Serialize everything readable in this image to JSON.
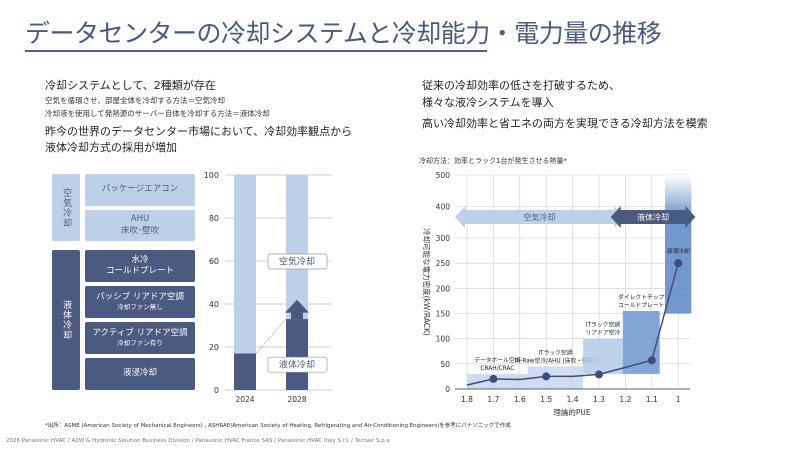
{
  "title": "データセンターの冷却システムと冷却能力・電力量の推移",
  "left_text": {
    "heading1": "冷却システムとして、2種類が存在",
    "line1": "空気を循環させ、部屋全体を冷却する方法＝空気冷却",
    "line2": "冷却液を使用して発熱源のサーバー自体を冷却する方法＝液体冷却",
    "heading2a": "昨今の世界のデータセンター市場において、冷却効率観点から",
    "heading2b": "液体冷却方式の採用が増加"
  },
  "right_text": {
    "line1": "従来の冷却効率の低さを打破するため、",
    "line2": "様々な液冷システムを導入",
    "line3": "高い冷却効率と省エネの両方を実現できる冷却方法を模索"
  },
  "classification": {
    "air": {
      "label": "空気冷却",
      "items": [
        {
          "main": "パッケージエアコン",
          "sub": ""
        },
        {
          "main": "AHU",
          "sub": "床吹･壁吹"
        }
      ]
    },
    "liquid": {
      "label": "液体冷却",
      "items": [
        {
          "main": "水冷",
          "sub": "コールドプレート"
        },
        {
          "main": "パッシブ リアドア空調",
          "sub": "冷却ファン無し"
        },
        {
          "main": "アクティブ リアドア空調",
          "sub": "冷却ファン有り"
        },
        {
          "main": "液浸冷却",
          "sub": ""
        }
      ]
    }
  },
  "chart_data": [
    {
      "type": "bar",
      "stacked": true,
      "categories": [
        "2024",
        "2028"
      ],
      "series": [
        {
          "name": "液体冷却",
          "values": [
            17,
            33
          ],
          "color": "#4a5a80"
        },
        {
          "name": "空気冷却",
          "values": [
            83,
            67
          ],
          "color": "#bdd0ea"
        }
      ],
      "ylim": [
        0,
        100
      ],
      "yticks": [
        0,
        20,
        40,
        60,
        80,
        100
      ],
      "grid": true
    },
    {
      "type": "line",
      "title": "冷却方法：効率とラック1台が発生させる熱量*",
      "xlabel": "理論的PUE",
      "ylabel": "冷却可能な電力密度(kW/RACK)",
      "x": [
        1.8,
        1.7,
        1.6,
        1.5,
        1.4,
        1.3,
        1.2,
        1.1,
        1.0
      ],
      "y": [
        8,
        20,
        19,
        25,
        25,
        29,
        43,
        57,
        250
      ],
      "markers_at": [
        1.7,
        1.5,
        1.3,
        1.1,
        1.0
      ],
      "xticks": [
        "1.8",
        "1.7",
        "1.6",
        "1.5",
        "1.4",
        "1.3",
        "1.2",
        "1.1",
        "1"
      ],
      "yticks": [
        0,
        50,
        100,
        150,
        200,
        250,
        300,
        400,
        500
      ],
      "xlim": [
        1.8,
        1.0
      ],
      "ylim": [
        0,
        500
      ],
      "x_reversed": true,
      "grid": true,
      "regions": [
        {
          "label": "データホール空調\nCRAH/CRAC",
          "x": [
            1.8,
            1.57
          ],
          "y": [
            0,
            30
          ],
          "color": "#c6d7ee"
        },
        {
          "label": "ITラック空調\nIn-Raw空冷/AHU (床吹・壁吹)",
          "x": [
            1.57,
            1.36
          ],
          "y": [
            0,
            45
          ],
          "color": "#c6d7ee"
        },
        {
          "label": "ITラック空調\nリアドア空冷",
          "x": [
            1.36,
            1.21
          ],
          "y": [
            30,
            100
          ],
          "color": "#b3cae9"
        },
        {
          "label": "ダイレクトチップ\nコールドプレート",
          "x": [
            1.21,
            1.07
          ],
          "y": [
            30,
            155
          ],
          "color": "#6f96cf"
        },
        {
          "label": "液浸冷却",
          "x": [
            1.05,
            0.95
          ],
          "y": [
            150,
            500
          ],
          "color": "#5a86c6"
        }
      ],
      "arrows": [
        {
          "label": "空気冷却",
          "x": [
            1.8,
            1.22
          ],
          "color": "#bdd0ea"
        },
        {
          "label": "液体冷却",
          "x": [
            1.21,
            0.95
          ],
          "color": "#4a5a80"
        }
      ]
    }
  ],
  "footnote": "*出所：ASME (American Society of Mechanical Engineers) , ASHRAE(American Society of Heating, Refrigerating and Air-Conditioning Engineers)を参考にパナソニックで作成",
  "copyright": "2026 Panasonic HVAC / A2W & Hydronic Solution Business Division / Panasonic HVAC France SAS / Panasonic HVAC Italy S.r.L / Tecnair S.p.a"
}
